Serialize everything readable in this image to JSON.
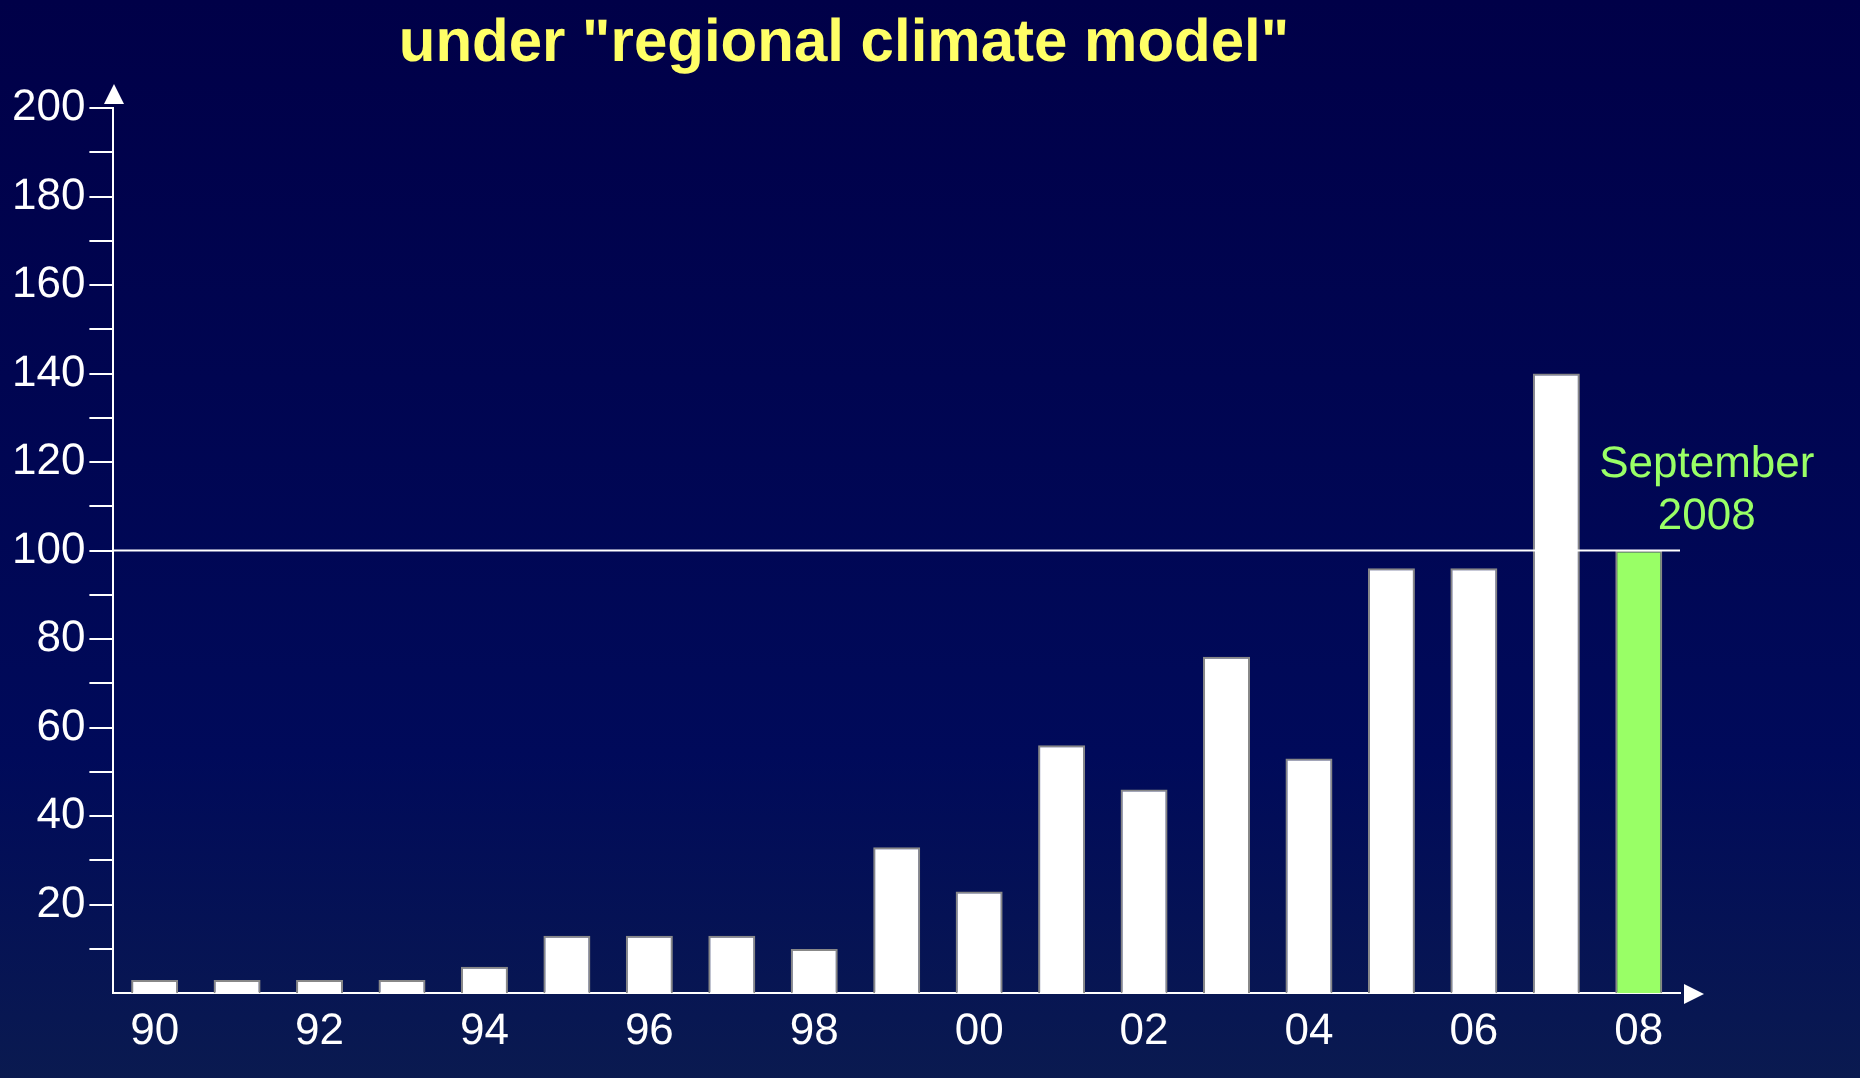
{
  "chart_data": {
    "type": "bar",
    "title": "under \"regional climate model\"",
    "categories": [
      "90",
      null,
      "92",
      null,
      "94",
      null,
      "96",
      null,
      "98",
      null,
      "00",
      null,
      "02",
      null,
      "04",
      null,
      "06",
      null,
      "08"
    ],
    "values": [
      3,
      3,
      3,
      3,
      6,
      13,
      13,
      13,
      10,
      33,
      23,
      56,
      46,
      76,
      53,
      96,
      96,
      140,
      100
    ],
    "colors": [
      "#ffffff",
      "#ffffff",
      "#ffffff",
      "#ffffff",
      "#ffffff",
      "#ffffff",
      "#ffffff",
      "#ffffff",
      "#ffffff",
      "#ffffff",
      "#ffffff",
      "#ffffff",
      "#ffffff",
      "#ffffff",
      "#ffffff",
      "#ffffff",
      "#ffffff",
      "#ffffff",
      "#99ff66"
    ],
    "ylim": [
      0,
      200
    ],
    "yticks": [
      {
        "value": 10,
        "label": null
      },
      20,
      {
        "value": 30,
        "label": null
      },
      40,
      {
        "value": 50,
        "label": null
      },
      60,
      {
        "value": 70,
        "label": null
      },
      80,
      {
        "value": 90,
        "label": null
      },
      100,
      {
        "value": 110,
        "label": null
      },
      120,
      {
        "value": 130,
        "label": null
      },
      140,
      {
        "value": 150,
        "label": null
      },
      160,
      {
        "value": 170,
        "label": null
      },
      180,
      {
        "value": 190,
        "label": null
      },
      200
    ],
    "ref_lines": [
      {
        "axis": "y",
        "value": 100,
        "color": "#ffffff"
      }
    ],
    "annotations": [
      {
        "text": "September 2008",
        "x": "08",
        "y": 100
      }
    ],
    "grid": false,
    "legend": false
  }
}
